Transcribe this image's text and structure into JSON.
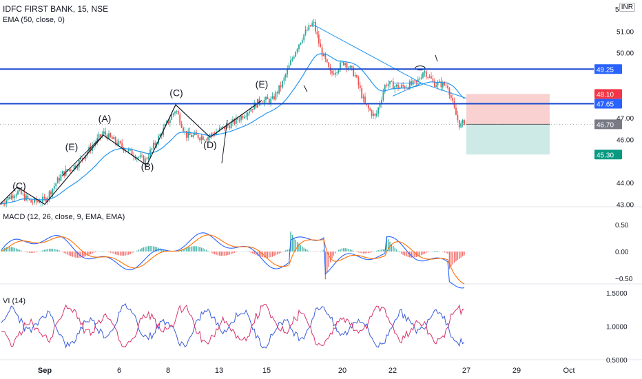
{
  "header": {
    "symbol_line": "IDFC FIRST BANK, 15, NSE",
    "ema_line": "EMA (50, close, 0)",
    "currency": "INR"
  },
  "panes": {
    "macd_label": "MACD (12, 26, close, 9, EMA, EMA)",
    "vi_label": "VI (14)"
  },
  "price_axis": {
    "ticks": [
      "51.00",
      "50.00",
      "47.00",
      "46.00",
      "44.00",
      "43.00"
    ],
    "top_partial": "5"
  },
  "macd_axis": {
    "ticks": [
      "0.50",
      "0.00",
      "−0.50"
    ]
  },
  "vi_axis": {
    "ticks": [
      "1.5000",
      "1.0000",
      "0.5000"
    ]
  },
  "time_axis": {
    "ticks": [
      "Sep",
      "6",
      "8",
      "13",
      "15",
      "20",
      "22",
      "27",
      "29",
      "Oct"
    ]
  },
  "price_badges": [
    {
      "label": "49.25",
      "color": "#2962ff"
    },
    {
      "label": "48.10",
      "color": "#f23645"
    },
    {
      "label": "47.65",
      "color": "#2962ff"
    },
    {
      "label": "46.70",
      "color": "#787b86"
    },
    {
      "label": "45.30",
      "color": "#089981"
    }
  ],
  "wave_labels": [
    "(C)",
    "(E)",
    "(A)",
    "(B)",
    "(C)",
    "(D)",
    "(E)"
  ],
  "horizontal_levels": [
    49.25,
    47.65
  ],
  "position": {
    "entry": 46.7,
    "stop": 48.1,
    "target": 45.3
  },
  "colors": {
    "up": "#26a69a",
    "down": "#ef5350",
    "ema": "#2196f3",
    "level": "#1848cc",
    "macd": "#2962ff",
    "signal": "#ff6d00",
    "vi_plus": "#3a5bd9",
    "vi_minus": "#d6336c",
    "stop_zone": "#f7c5c5",
    "target_zone": "#c8e8e4"
  }
}
